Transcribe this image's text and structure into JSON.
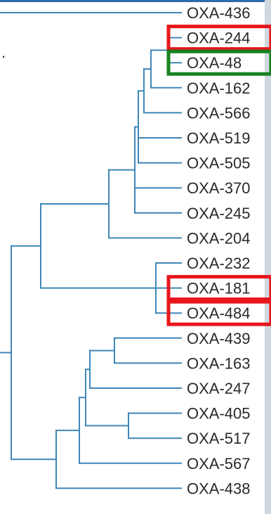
{
  "leaves": [
    {
      "id": "OXA-436",
      "label": "OXA-436"
    },
    {
      "id": "OXA-244",
      "label": "OXA-244",
      "highlight": "red"
    },
    {
      "id": "OXA-48",
      "label": "OXA-48",
      "highlight": "green"
    },
    {
      "id": "OXA-162",
      "label": "OXA-162"
    },
    {
      "id": "OXA-566",
      "label": "OXA-566"
    },
    {
      "id": "OXA-519",
      "label": "OXA-519"
    },
    {
      "id": "OXA-505",
      "label": "OXA-505"
    },
    {
      "id": "OXA-370",
      "label": "OXA-370"
    },
    {
      "id": "OXA-245",
      "label": "OXA-245"
    },
    {
      "id": "OXA-204",
      "label": "OXA-204"
    },
    {
      "id": "OXA-232",
      "label": "OXA-232"
    },
    {
      "id": "OXA-181",
      "label": "OXA-181",
      "highlight": "red"
    },
    {
      "id": "OXA-484",
      "label": "OXA-484",
      "highlight": "red"
    },
    {
      "id": "OXA-439",
      "label": "OXA-439"
    },
    {
      "id": "OXA-163",
      "label": "OXA-163"
    },
    {
      "id": "OXA-247",
      "label": "OXA-247"
    },
    {
      "id": "OXA-405",
      "label": "OXA-405"
    },
    {
      "id": "OXA-517",
      "label": "OXA-517"
    },
    {
      "id": "OXA-567",
      "label": "OXA-567"
    },
    {
      "id": "OXA-438",
      "label": "OXA-438"
    }
  ],
  "colors": {
    "branch": "#3f86b8",
    "highlight_red": "#e8161b",
    "highlight_green": "#16821f",
    "label": "#2a2a2a"
  }
}
